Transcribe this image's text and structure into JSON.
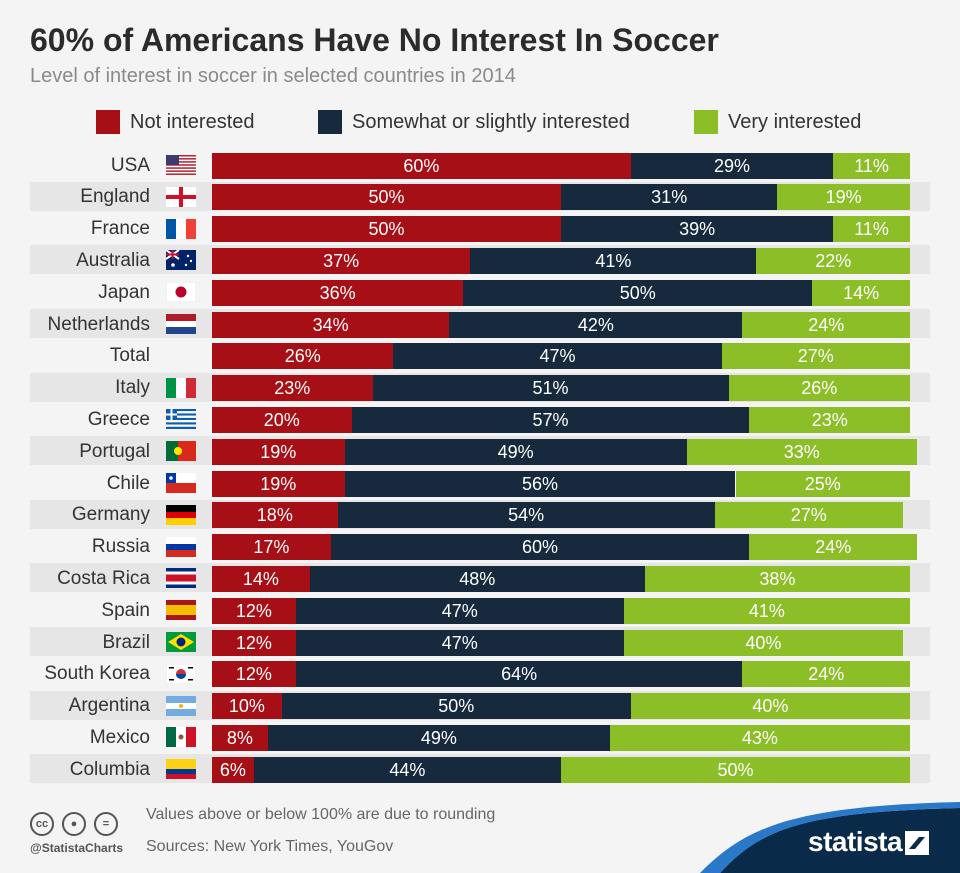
{
  "header": {
    "title": "60% of Americans Have No Interest In Soccer",
    "subtitle": "Level of interest in soccer in selected countries in 2014"
  },
  "legend": [
    {
      "label": "Not interested",
      "color": "#a50f15"
    },
    {
      "label": "Somewhat or slightly interested",
      "color": "#172a3d"
    },
    {
      "label": "Very interested",
      "color": "#8cbe28"
    }
  ],
  "chart_data": {
    "type": "bar",
    "orientation": "horizontal-stacked",
    "title": "60% of Americans Have No Interest In Soccer",
    "subtitle": "Level of interest in soccer in selected countries in 2014",
    "unit": "%",
    "categories": [
      "USA",
      "England",
      "France",
      "Australia",
      "Japan",
      "Netherlands",
      "Total",
      "Italy",
      "Greece",
      "Portugal",
      "Chile",
      "Germany",
      "Russia",
      "Costa Rica",
      "Spain",
      "Brazil",
      "South Korea",
      "Argentina",
      "Mexico",
      "Columbia"
    ],
    "series": [
      {
        "name": "Not interested",
        "color": "#a50f15",
        "values": [
          60,
          50,
          50,
          37,
          36,
          34,
          26,
          23,
          20,
          19,
          19,
          18,
          17,
          14,
          12,
          12,
          12,
          10,
          8,
          6
        ]
      },
      {
        "name": "Somewhat or slightly interested",
        "color": "#172a3d",
        "values": [
          29,
          31,
          39,
          41,
          50,
          42,
          47,
          51,
          57,
          49,
          56,
          54,
          60,
          48,
          47,
          47,
          64,
          50,
          49,
          44
        ]
      },
      {
        "name": "Very interested",
        "color": "#8cbe28",
        "values": [
          11,
          19,
          11,
          22,
          14,
          24,
          27,
          26,
          23,
          33,
          25,
          27,
          24,
          38,
          41,
          40,
          24,
          40,
          43,
          50
        ]
      }
    ],
    "legend_position": "top",
    "grid": false
  },
  "footer": {
    "note": "Values above or below 100% are due to rounding",
    "sources": "Sources: New York Times, YouGov",
    "handle": "@StatistaCharts",
    "brand": "statista",
    "brand_color": "#0a2a4a"
  },
  "icons": [
    "cc-icon",
    "attribution-icon",
    "no-derivatives-icon",
    "statista-logo-icon"
  ]
}
